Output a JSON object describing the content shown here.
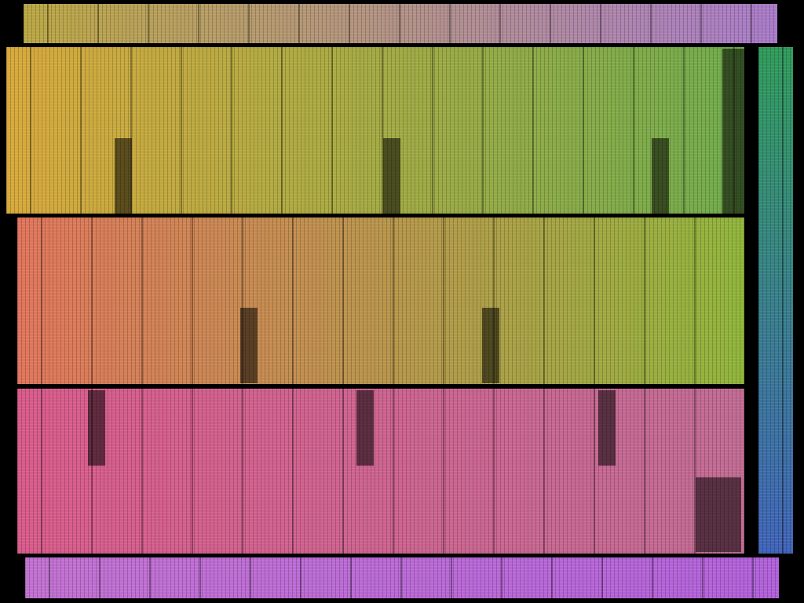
{
  "image": {
    "subject": "die-shot",
    "colors": {
      "background": "#000000",
      "top_strip": [
        "#b9a642",
        "#a87ac8"
      ],
      "row1": [
        "#d7a83a",
        "#6faa4a"
      ],
      "row2": [
        "#e0745a",
        "#8fb43a"
      ],
      "row3": [
        "#d85a8a",
        "#c06a92"
      ],
      "bottom_strip": [
        "#c070d0",
        "#b060d8"
      ],
      "right_column": [
        "#2f9a5a",
        "#3f63b8"
      ]
    }
  }
}
